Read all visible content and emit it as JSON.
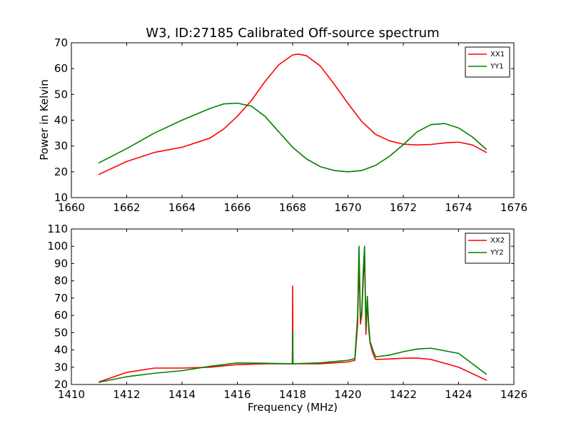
{
  "chart_data": [
    {
      "type": "line",
      "title": "W3, ID:27185 Calibrated Off-source spectrum",
      "xlabel": "",
      "ylabel": "Power in Kelvin",
      "xlim": [
        1660,
        1676
      ],
      "ylim": [
        10,
        70
      ],
      "xticks": [
        1660,
        1662,
        1664,
        1666,
        1668,
        1670,
        1672,
        1674,
        1676
      ],
      "yticks": [
        10,
        20,
        30,
        40,
        50,
        60,
        70
      ],
      "legend": "top-right",
      "series": [
        {
          "name": "XX1",
          "color": "#ff0000",
          "x": [
            1661,
            1662,
            1663,
            1664,
            1665,
            1665.5,
            1666,
            1666.5,
            1667,
            1667.5,
            1668,
            1668.2,
            1668.5,
            1669,
            1669.5,
            1670,
            1670.5,
            1671,
            1671.5,
            1672,
            1672.5,
            1673,
            1673.5,
            1674,
            1674.5,
            1675
          ],
          "y": [
            19,
            24,
            27.5,
            29.5,
            33,
            36.5,
            41.5,
            47.5,
            55,
            61.5,
            65.3,
            65.6,
            65,
            61,
            54,
            46.5,
            39.5,
            34.5,
            32,
            30.7,
            30.4,
            30.6,
            31.2,
            31.5,
            30.4,
            27.5
          ]
        },
        {
          "name": "YY1",
          "color": "#008000",
          "x": [
            1661,
            1662,
            1663,
            1664,
            1665,
            1665.5,
            1666,
            1666.5,
            1667,
            1667.5,
            1668,
            1668.5,
            1669,
            1669.5,
            1670,
            1670.5,
            1671,
            1671.5,
            1672,
            1672.5,
            1673,
            1673.5,
            1674,
            1674.5,
            1675
          ],
          "y": [
            23.5,
            29,
            35,
            40,
            44.5,
            46.3,
            46.6,
            45.5,
            41.5,
            35.5,
            29.5,
            25,
            22,
            20.5,
            20,
            20.5,
            22.5,
            26,
            30.5,
            35.5,
            38.3,
            38.7,
            37,
            33.5,
            28.7
          ]
        }
      ]
    },
    {
      "type": "line",
      "title": "",
      "xlabel": "Frequency (MHz)",
      "ylabel": "",
      "xlim": [
        1410,
        1426
      ],
      "ylim": [
        20,
        110
      ],
      "xticks": [
        1410,
        1412,
        1414,
        1416,
        1418,
        1420,
        1422,
        1424,
        1426
      ],
      "yticks": [
        20,
        30,
        40,
        50,
        60,
        70,
        80,
        90,
        100,
        110
      ],
      "legend": "top-right",
      "series": [
        {
          "name": "XX2",
          "color": "#ff0000",
          "x": [
            1411,
            1412,
            1413,
            1414,
            1415,
            1416,
            1417,
            1417.99,
            1418.0,
            1418.01,
            1419,
            1420,
            1420.25,
            1420.35,
            1420.4,
            1420.45,
            1420.5,
            1420.55,
            1420.6,
            1420.65,
            1420.7,
            1420.75,
            1420.8,
            1420.9,
            1421.0,
            1421.5,
            1422,
            1422.5,
            1423,
            1424,
            1425
          ],
          "y": [
            21.5,
            27,
            29.5,
            29.5,
            30,
            31.5,
            32,
            32,
            77,
            32,
            32,
            33,
            34,
            55,
            93,
            55,
            60,
            80,
            95,
            49,
            68,
            52,
            44,
            38,
            34.5,
            34.8,
            35.2,
            35.3,
            34.5,
            30,
            22.5
          ]
        },
        {
          "name": "YY2",
          "color": "#008000",
          "x": [
            1411,
            1412,
            1413,
            1414,
            1415,
            1416,
            1417,
            1417.99,
            1418.0,
            1418.01,
            1419,
            1420,
            1420.25,
            1420.35,
            1420.4,
            1420.45,
            1420.5,
            1420.55,
            1420.6,
            1420.65,
            1420.7,
            1420.75,
            1420.8,
            1420.9,
            1421.0,
            1421.5,
            1422,
            1422.5,
            1423,
            1424,
            1425
          ],
          "y": [
            21.3,
            24.5,
            26.5,
            28,
            30.5,
            32.5,
            32.3,
            32,
            51,
            32,
            32.5,
            34,
            35,
            60,
            100,
            58,
            62,
            85,
            100,
            52,
            71,
            55,
            45,
            40,
            36,
            37,
            39,
            40.5,
            41,
            38,
            26
          ]
        }
      ]
    }
  ]
}
